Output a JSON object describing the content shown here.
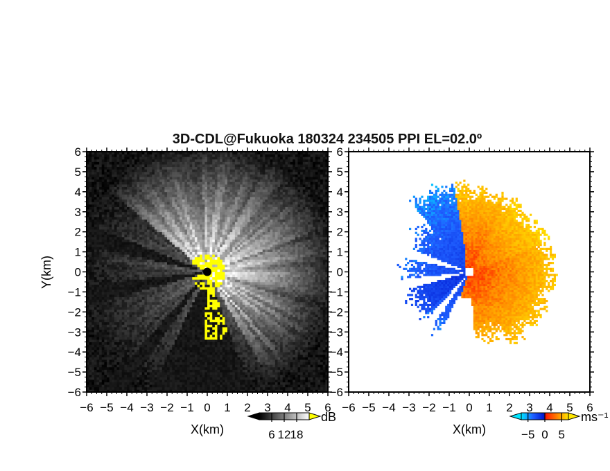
{
  "title": "3D-CDL@Fukuoka 180324 234505 PPI EL=02.0º",
  "chart_data": [
    {
      "type": "heatmap",
      "panel": "reflectivity",
      "xlabel": "X(km)",
      "ylabel": "Y(km)",
      "xlim": [
        -6,
        6
      ],
      "ylim": [
        -6,
        6
      ],
      "x_ticks": [
        "−6",
        "−5",
        "−4",
        "−3",
        "−2",
        "−1",
        "0",
        "1",
        "2",
        "3",
        "4",
        "5",
        "6"
      ],
      "y_ticks": [
        "6",
        "5",
        "4",
        "3",
        "2",
        "1",
        "0",
        "−1",
        "−2",
        "−3",
        "−4",
        "−5",
        "−6"
      ],
      "colorbar": {
        "unit": "dB",
        "ticks": [
          "6",
          "12",
          "18"
        ],
        "tick_values": [
          6,
          12,
          18
        ],
        "range": [
          0,
          24
        ],
        "colors": [
          "#000000",
          "#ffffff"
        ],
        "over_color": "#ffff00"
      },
      "features": {
        "background_value_db": 3,
        "bright_sector_deg": [
          -60,
          140
        ],
        "blocked_wedges_deg": [
          [
            158,
            168
          ],
          [
            186,
            196
          ],
          [
            228,
            236
          ]
        ],
        "yellow_near_range_km": 0.9,
        "radar_center_km": [
          0,
          0
        ]
      }
    },
    {
      "type": "heatmap",
      "panel": "doppler_velocity",
      "xlabel": "X(km)",
      "xlim": [
        -6,
        6
      ],
      "ylim": [
        -6,
        6
      ],
      "x_ticks": [
        "−6",
        "−5",
        "−4",
        "−3",
        "−2",
        "−1",
        "0",
        "1",
        "2",
        "3",
        "4",
        "5",
        "6"
      ],
      "colorbar": {
        "unit": "ms⁻¹",
        "ticks": [
          "−5",
          "0",
          "5"
        ],
        "tick_values": [
          -5,
          0,
          5
        ],
        "range": [
          -7,
          7
        ],
        "colors": [
          "#00e5ff",
          "#1f5fff",
          "#0018d0",
          "#ff1a00",
          "#ff8c00",
          "#ffe600"
        ]
      },
      "features": {
        "negative_sector_deg": [
          100,
          250
        ],
        "max_range_km": 4.6
      }
    }
  ]
}
